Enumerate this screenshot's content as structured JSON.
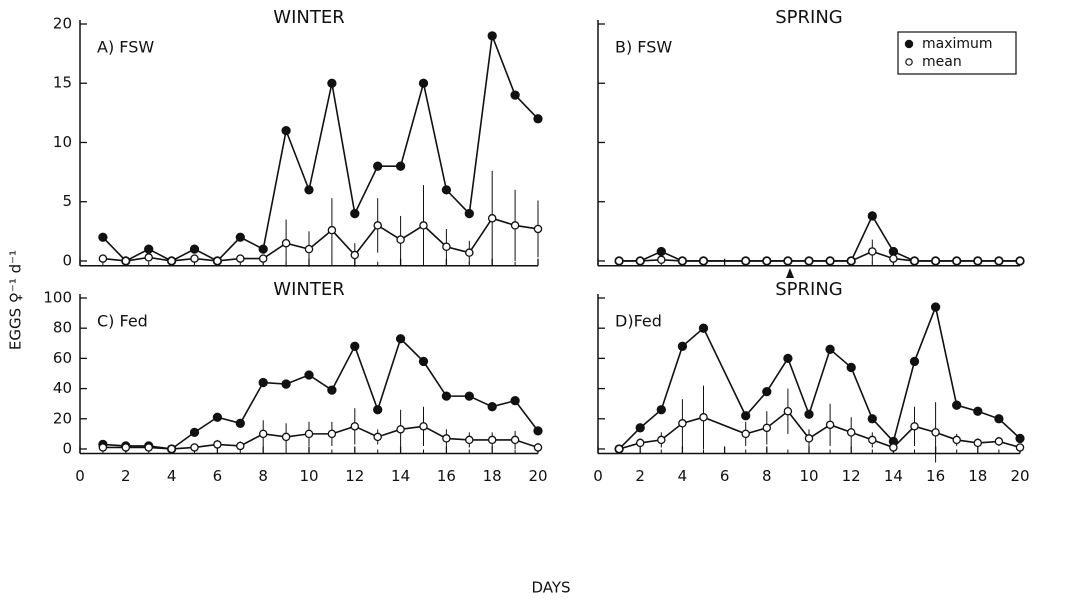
{
  "ylabel": "EGGS ♀⁻¹ d⁻¹",
  "xlabel": "DAYS",
  "chart_data": [
    {
      "type": "line",
      "title": "WINTER",
      "panel_label": "A) FSW",
      "x": [
        1,
        2,
        3,
        4,
        5,
        6,
        7,
        8,
        9,
        10,
        11,
        12,
        13,
        14,
        15,
        16,
        17,
        18,
        19,
        20
      ],
      "series": [
        {
          "color": "#111111",
          "marker": "filled",
          "values": [
            2,
            0,
            1,
            0,
            1,
            0,
            2,
            1,
            11,
            6,
            15,
            4,
            8,
            8,
            15,
            6,
            4,
            19,
            14,
            12
          ]
        },
        {
          "color": "#111111",
          "marker": "open",
          "values": [
            0.2,
            0,
            0.3,
            0,
            0.2,
            0,
            0.2,
            0.2,
            1.5,
            1,
            2.6,
            0.5,
            3,
            1.8,
            3,
            1.2,
            0.7,
            3.6,
            3,
            2.7
          ],
          "errors": [
            0.3,
            0,
            0.3,
            0,
            0.3,
            0,
            0.3,
            0.3,
            2,
            1.5,
            2.7,
            1,
            2.3,
            2,
            3.4,
            1.5,
            1,
            4,
            3,
            2.4
          ]
        }
      ],
      "xlim": [
        0,
        20
      ],
      "xticks": [
        0,
        2,
        4,
        6,
        8,
        10,
        12,
        14,
        16,
        18,
        20
      ],
      "show_xtick_labels": false,
      "ylim": [
        -0.4,
        20
      ],
      "yticks": [
        0,
        5,
        10,
        15,
        20
      ],
      "show_ytick_labels": true
    },
    {
      "type": "line",
      "title": "SPRING",
      "panel_label": "B) FSW",
      "x": [
        1,
        2,
        3,
        4,
        5,
        7,
        8,
        9,
        10,
        11,
        12,
        13,
        14,
        15,
        16,
        17,
        18,
        19,
        20
      ],
      "series": [
        {
          "name": "maximum",
          "color": "#111111",
          "marker": "filled",
          "values": [
            0,
            0,
            0.8,
            0,
            0,
            0,
            0,
            0,
            0,
            0,
            0,
            3.8,
            0.8,
            0,
            0,
            0,
            0,
            0,
            0
          ]
        },
        {
          "name": "mean",
          "color": "#111111",
          "marker": "open",
          "values": [
            0,
            0,
            0.1,
            0,
            0,
            0,
            0,
            0,
            0,
            0,
            0,
            0.8,
            0.2,
            0,
            0,
            0,
            0,
            0,
            0
          ],
          "errors": [
            0,
            0,
            0.3,
            0,
            0,
            0,
            0,
            0,
            0,
            0,
            0,
            1,
            0.3,
            0,
            0,
            0,
            0,
            0,
            0
          ]
        }
      ],
      "legend": "upper right",
      "xlim": [
        0,
        20
      ],
      "xticks": [
        0,
        2,
        4,
        6,
        8,
        10,
        12,
        14,
        16,
        18,
        20
      ],
      "show_xtick_labels": false,
      "ylim": [
        -0.4,
        20
      ],
      "yticks": [
        0,
        5,
        10,
        15,
        20
      ],
      "show_ytick_labels": false
    },
    {
      "type": "line",
      "title": "WINTER",
      "panel_label": "C) Fed",
      "x": [
        1,
        2,
        3,
        4,
        5,
        6,
        7,
        8,
        9,
        10,
        11,
        12,
        13,
        14,
        15,
        16,
        17,
        18,
        19,
        20
      ],
      "series": [
        {
          "color": "#111111",
          "marker": "filled",
          "values": [
            3,
            2,
            2,
            0,
            11,
            21,
            17,
            44,
            43,
            49,
            39,
            68,
            26,
            73,
            58,
            35,
            35,
            28,
            32,
            12
          ]
        },
        {
          "color": "#111111",
          "marker": "open",
          "values": [
            1,
            1,
            1,
            0,
            1,
            3,
            2,
            10,
            8,
            10,
            10,
            15,
            8,
            13,
            15,
            7,
            6,
            6,
            6,
            1
          ],
          "errors": [
            1,
            1,
            1,
            0,
            1,
            3,
            3,
            9,
            9,
            8,
            8,
            12,
            5,
            13,
            13,
            6,
            5,
            5,
            6,
            3
          ]
        }
      ],
      "xlim": [
        0,
        20
      ],
      "xticks": [
        0,
        2,
        4,
        6,
        8,
        10,
        12,
        14,
        16,
        18,
        20
      ],
      "show_xtick_labels": true,
      "ylim": [
        -3,
        100
      ],
      "yticks": [
        0,
        20,
        40,
        60,
        80,
        100
      ],
      "show_ytick_labels": true
    },
    {
      "type": "line",
      "title": "SPRING",
      "panel_label": "D)Fed",
      "x": [
        1,
        2,
        3,
        4,
        5,
        7,
        8,
        9,
        10,
        11,
        12,
        13,
        14,
        15,
        16,
        17,
        18,
        19,
        20
      ],
      "series": [
        {
          "color": "#111111",
          "marker": "filled",
          "values": [
            0,
            14,
            26,
            68,
            80,
            22,
            38,
            60,
            23,
            66,
            54,
            20,
            5,
            58,
            94,
            29,
            25,
            20,
            7
          ]
        },
        {
          "color": "#111111",
          "marker": "open",
          "values": [
            0,
            4,
            6,
            17,
            21,
            10,
            14,
            25,
            7,
            16,
            11,
            6,
            1,
            15,
            11,
            6,
            4,
            5,
            1
          ],
          "errors": [
            0,
            3,
            5,
            16,
            21,
            8,
            11,
            15,
            6,
            14,
            10,
            5,
            2,
            13,
            20,
            4,
            3,
            3,
            2
          ]
        }
      ],
      "xlim": [
        0,
        20
      ],
      "xticks": [
        0,
        2,
        4,
        6,
        8,
        10,
        12,
        14,
        16,
        18,
        20
      ],
      "show_xtick_labels": true,
      "ylim": [
        -3,
        100
      ],
      "yticks": [
        0,
        20,
        40,
        60,
        80,
        100
      ],
      "show_ytick_labels": false
    }
  ]
}
